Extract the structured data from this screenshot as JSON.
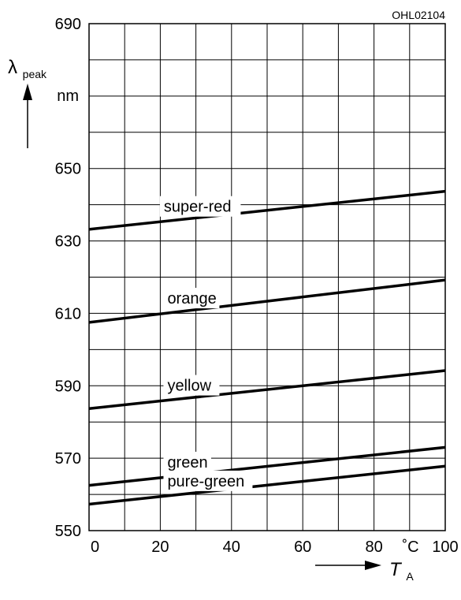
{
  "chart_data": {
    "type": "line",
    "code": "OHL02104",
    "y_axis": {
      "symbol": "λ",
      "subscript": "peak",
      "unit": "nm"
    },
    "x_axis": {
      "symbol": "T",
      "subscript": "A",
      "unit": "˚C"
    },
    "xlim": [
      0,
      100
    ],
    "ylim": [
      550,
      690
    ],
    "x_ticks": [
      0,
      20,
      40,
      60,
      80,
      100
    ],
    "y_ticks": [
      550,
      570,
      590,
      610,
      630,
      650,
      690
    ],
    "grid": true,
    "series": [
      {
        "name": "super-red",
        "x": [
          0,
          100
        ],
        "y": [
          633.2,
          643.7
        ],
        "label_x": 21
      },
      {
        "name": "orange",
        "x": [
          0,
          100
        ],
        "y": [
          607.5,
          619.2
        ],
        "label_x": 22
      },
      {
        "name": "yellow",
        "x": [
          0,
          100
        ],
        "y": [
          583.7,
          594.2
        ],
        "label_x": 22
      },
      {
        "name": "green",
        "x": [
          0,
          100
        ],
        "y": [
          562.5,
          573.0
        ],
        "label_x": 22
      },
      {
        "name": "pure-green",
        "x": [
          0,
          100
        ],
        "y": [
          557.3,
          567.8
        ],
        "label_x": 22
      }
    ]
  }
}
